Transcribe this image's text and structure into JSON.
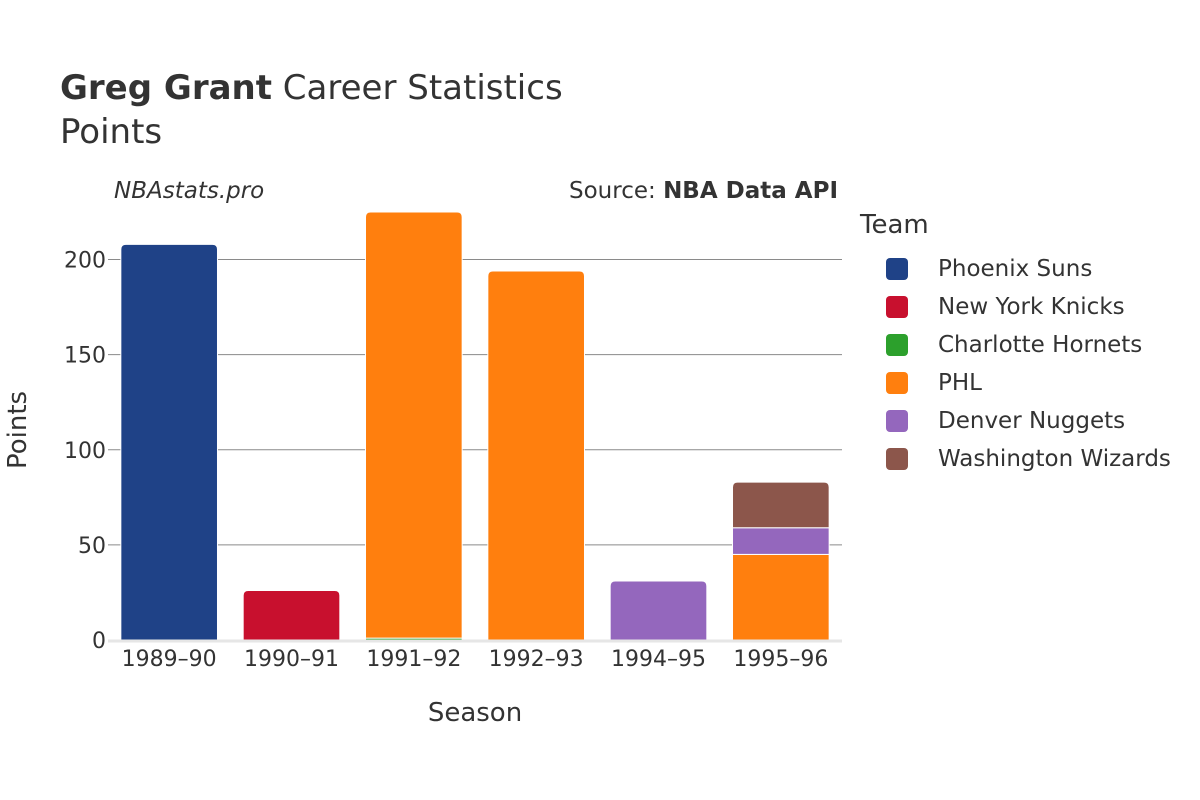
{
  "header": {
    "title_bold": "Greg Grant",
    "title_rest": " Career Statistics",
    "subtitle": "Points",
    "watermark": "NBAstats.pro",
    "source_prefix": "Source: ",
    "source_name": "NBA Data API"
  },
  "legend": {
    "title": "Team",
    "items": [
      {
        "label": "Phoenix Suns",
        "color": "#1f4287"
      },
      {
        "label": "New York Knicks",
        "color": "#c8102e"
      },
      {
        "label": "Charlotte Hornets",
        "color": "#2ca02c"
      },
      {
        "label": "PHL",
        "color": "#ff7f0e"
      },
      {
        "label": "Denver Nuggets",
        "color": "#9467bd"
      },
      {
        "label": "Washington Wizards",
        "color": "#8c564b"
      }
    ]
  },
  "chart_data": {
    "type": "bar",
    "stacked": true,
    "title": "Greg Grant Career Statistics",
    "subtitle": "Points",
    "xlabel": "Season",
    "ylabel": "Points",
    "ylim": [
      0,
      225
    ],
    "yticks": [
      0,
      50,
      100,
      150,
      200
    ],
    "categories": [
      "1989–90",
      "1990–91",
      "1991–92",
      "1992–93",
      "1994–95",
      "1995–96"
    ],
    "series": [
      {
        "name": "Phoenix Suns",
        "color": "#1f4287",
        "values": [
          208,
          0,
          0,
          0,
          0,
          0
        ]
      },
      {
        "name": "New York Knicks",
        "color": "#c8102e",
        "values": [
          0,
          26,
          0,
          0,
          0,
          0
        ]
      },
      {
        "name": "Charlotte Hornets",
        "color": "#2ca02c",
        "values": [
          0,
          0,
          1,
          0,
          0,
          0
        ]
      },
      {
        "name": "PHL",
        "color": "#ff7f0e",
        "values": [
          0,
          0,
          224,
          194,
          0,
          45
        ]
      },
      {
        "name": "Denver Nuggets",
        "color": "#9467bd",
        "values": [
          0,
          0,
          0,
          0,
          31,
          14
        ]
      },
      {
        "name": "Washington Wizards",
        "color": "#8c564b",
        "values": [
          0,
          0,
          0,
          0,
          0,
          24
        ]
      }
    ]
  }
}
